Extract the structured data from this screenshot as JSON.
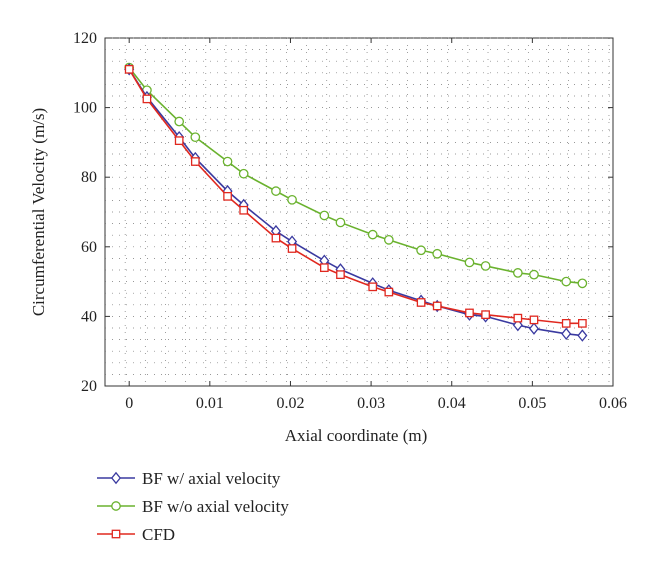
{
  "chart_data": {
    "type": "line",
    "xlabel": "Axial coordinate (m)",
    "ylabel": "Circumferential Velocity (m/s)",
    "xlim": [
      -0.003,
      0.06
    ],
    "ylim": [
      20,
      120
    ],
    "x_ticks": [
      0,
      0.01,
      0.02,
      0.03,
      0.04,
      0.05,
      0.06
    ],
    "x_tick_labels": [
      "0",
      "0.01",
      "0.02",
      "0.03",
      "0.04",
      "0.05",
      "0.06"
    ],
    "y_ticks": [
      20,
      40,
      60,
      80,
      100,
      120
    ],
    "y_tick_labels": [
      "20",
      "40",
      "60",
      "80",
      "100",
      "120"
    ],
    "grid": "dotted",
    "legend_position": "below",
    "series": [
      {
        "name": "BF w/ axial velocity",
        "color": "#3a3aa0",
        "marker": "diamond",
        "x": [
          0,
          0.0022,
          0.0062,
          0.0082,
          0.0122,
          0.0142,
          0.0182,
          0.0202,
          0.0242,
          0.0262,
          0.0302,
          0.0322,
          0.0362,
          0.0382,
          0.0422,
          0.0442,
          0.0482,
          0.0502,
          0.0542,
          0.0562
        ],
        "y": [
          111,
          103,
          91.5,
          85.5,
          76,
          72,
          64.5,
          61.5,
          56,
          53.5,
          49.5,
          47.5,
          44.5,
          43,
          40.5,
          40,
          37.5,
          36.5,
          35,
          34.5
        ]
      },
      {
        "name": "BF w/o axial velocity",
        "color": "#6ab22e",
        "marker": "circle",
        "x": [
          0,
          0.0022,
          0.0062,
          0.0082,
          0.0122,
          0.0142,
          0.0182,
          0.0202,
          0.0242,
          0.0262,
          0.0302,
          0.0322,
          0.0362,
          0.0382,
          0.0422,
          0.0442,
          0.0482,
          0.0502,
          0.0542,
          0.0562
        ],
        "y": [
          111.5,
          105,
          96,
          91.5,
          84.5,
          81,
          76,
          73.5,
          69,
          67,
          63.5,
          62,
          59,
          58,
          55.5,
          54.5,
          52.5,
          52,
          50,
          49.5
        ]
      },
      {
        "name": "CFD",
        "color": "#e0281f",
        "marker": "square",
        "x": [
          0,
          0.0022,
          0.0062,
          0.0082,
          0.0122,
          0.0142,
          0.0182,
          0.0202,
          0.0242,
          0.0262,
          0.0302,
          0.0322,
          0.0362,
          0.0382,
          0.0422,
          0.0442,
          0.0482,
          0.0502,
          0.0542,
          0.0562
        ],
        "y": [
          111,
          102.5,
          90.5,
          84.5,
          74.5,
          70.5,
          62.5,
          59.5,
          54,
          52,
          48.5,
          47,
          44,
          43,
          41,
          40.5,
          39.5,
          39,
          38,
          38
        ]
      }
    ]
  }
}
